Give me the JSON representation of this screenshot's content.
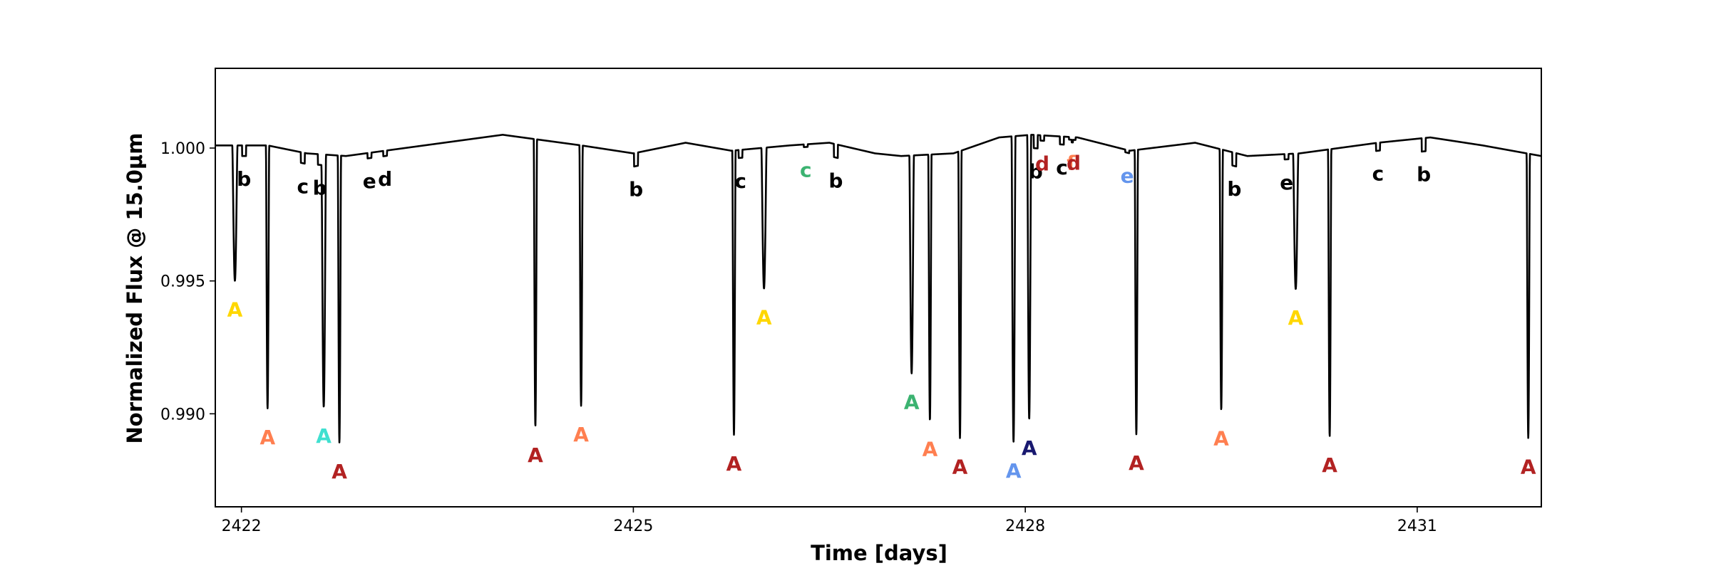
{
  "chart_data": {
    "type": "line",
    "title": "",
    "xlabel": "Time [days]",
    "ylabel": "Normalized Flux @ 15.0μm",
    "xlim": [
      2421.8,
      2431.95
    ],
    "ylim": [
      0.9865,
      1.003
    ],
    "xticks": [
      2422,
      2425,
      2428,
      2431
    ],
    "xtick_labels": [
      "2422",
      "2425",
      "2428",
      "2431"
    ],
    "yticks": [
      0.99,
      0.995,
      1.0
    ],
    "ytick_labels": [
      "0.990",
      "0.995",
      "1.000"
    ],
    "grid": false,
    "legend": false,
    "baseline": {
      "x": [
        2421.8,
        2422.2,
        2422.5,
        2422.8,
        2423.4,
        2424.0,
        2424.6,
        2425.0,
        2425.4,
        2425.75,
        2426.2,
        2426.5,
        2426.85,
        2427.05,
        2427.45,
        2427.8,
        2428.05,
        2428.4,
        2428.8,
        2429.3,
        2429.7,
        2430.1,
        2430.7,
        2431.1,
        2431.5,
        2431.95
      ],
      "y": [
        1.0001,
        1.0001,
        0.9998,
        0.9997,
        1.0001,
        1.0005,
        1.0001,
        0.9998,
        1.0002,
        0.9999,
        1.0001,
        1.0002,
        0.9998,
        0.9997,
        0.9998,
        1.0004,
        1.0005,
        1.0004,
        0.9999,
        1.0002,
        0.9997,
        0.9998,
        1.0002,
        1.0004,
        1.0001,
        0.9997
      ]
    },
    "transits": [
      {
        "label": "A",
        "color": "#FFD700",
        "t": 2421.95,
        "depth": 0.0051,
        "width": 0.04
      },
      {
        "label": "b",
        "color": "#000000",
        "t": 2422.02,
        "depth": 0.0004,
        "width": 0.03
      },
      {
        "label": "A",
        "color": "#FF7F50",
        "t": 2422.2,
        "depth": 0.0099,
        "width": 0.025
      },
      {
        "label": "A",
        "color": "#B22222",
        "t": 2422.75,
        "depth": 0.0108,
        "width": 0.025
      },
      {
        "label": "c",
        "color": "#000000",
        "t": 2422.47,
        "depth": 0.0004,
        "width": 0.03
      },
      {
        "label": "b",
        "color": "#000000",
        "t": 2422.6,
        "depth": 0.0004,
        "width": 0.03
      },
      {
        "label": "A",
        "color": "#40E0D0",
        "t": 2422.63,
        "depth": 0.0095,
        "width": 0.035
      },
      {
        "label": "e",
        "color": "#000000",
        "t": 2422.98,
        "depth": 0.0002,
        "width": 0.03
      },
      {
        "label": "d",
        "color": "#000000",
        "t": 2423.1,
        "depth": 0.0002,
        "width": 0.03
      },
      {
        "label": "A",
        "color": "#B22222",
        "t": 2424.25,
        "depth": 0.0108,
        "width": 0.025
      },
      {
        "label": "A",
        "color": "#FF7F50",
        "t": 2424.6,
        "depth": 0.0098,
        "width": 0.025
      },
      {
        "label": "b",
        "color": "#000000",
        "t": 2425.02,
        "depth": 0.0005,
        "width": 0.03
      },
      {
        "label": "A",
        "color": "#B22222",
        "t": 2425.77,
        "depth": 0.0107,
        "width": 0.025
      },
      {
        "label": "c",
        "color": "#000000",
        "t": 2425.82,
        "depth": 0.0003,
        "width": 0.03
      },
      {
        "label": "A",
        "color": "#FFD700",
        "t": 2426.0,
        "depth": 0.0053,
        "width": 0.04
      },
      {
        "label": "c",
        "color": "#3CB371",
        "t": 2426.32,
        "depth": 0.0001,
        "width": 0.03
      },
      {
        "label": "b",
        "color": "#000000",
        "t": 2426.55,
        "depth": 0.0005,
        "width": 0.03
      },
      {
        "label": "A",
        "color": "#3CB371",
        "t": 2427.13,
        "depth": 0.0082,
        "width": 0.035
      },
      {
        "label": "A",
        "color": "#FF7F50",
        "t": 2427.27,
        "depth": 0.01,
        "width": 0.025
      },
      {
        "label": "A",
        "color": "#B22222",
        "t": 2427.5,
        "depth": 0.0108,
        "width": 0.025
      },
      {
        "label": "A",
        "color": "#6495ED",
        "t": 2427.91,
        "depth": 0.0115,
        "width": 0.03
      },
      {
        "label": "A",
        "color": "#191970",
        "t": 2428.03,
        "depth": 0.0107,
        "width": 0.03
      },
      {
        "label": "b",
        "color": "#000000",
        "t": 2428.08,
        "depth": 0.0005,
        "width": 0.03
      },
      {
        "label": "d",
        "color": "#B22222",
        "t": 2428.13,
        "depth": 0.0002,
        "width": 0.03
      },
      {
        "label": "c",
        "color": "#000000",
        "t": 2428.28,
        "depth": 0.0003,
        "width": 0.03
      },
      {
        "label": "f",
        "color": "#FF7F50",
        "t": 2428.35,
        "depth": 0.0001,
        "width": 0.03
      },
      {
        "label": "d",
        "color": "#B22222",
        "t": 2428.37,
        "depth": 0.0001,
        "width": 0.03
      },
      {
        "label": "e",
        "color": "#6495ED",
        "t": 2428.78,
        "depth": 0.0001,
        "width": 0.03
      },
      {
        "label": "A",
        "color": "#B22222",
        "t": 2428.85,
        "depth": 0.0107,
        "width": 0.025
      },
      {
        "label": "A",
        "color": "#FF7F50",
        "t": 2429.5,
        "depth": 0.0098,
        "width": 0.025
      },
      {
        "label": "b",
        "color": "#000000",
        "t": 2429.6,
        "depth": 0.0005,
        "width": 0.03
      },
      {
        "label": "e",
        "color": "#000000",
        "t": 2430.0,
        "depth": 0.0002,
        "width": 0.03
      },
      {
        "label": "A",
        "color": "#FFD700",
        "t": 2430.07,
        "depth": 0.0051,
        "width": 0.04
      },
      {
        "label": "A",
        "color": "#B22222",
        "t": 2430.33,
        "depth": 0.0108,
        "width": 0.025
      },
      {
        "label": "c",
        "color": "#000000",
        "t": 2430.7,
        "depth": 0.0003,
        "width": 0.03
      },
      {
        "label": "b",
        "color": "#000000",
        "t": 2431.05,
        "depth": 0.0005,
        "width": 0.03
      },
      {
        "label": "A",
        "color": "#B22222",
        "t": 2431.85,
        "depth": 0.0107,
        "width": 0.025
      }
    ]
  }
}
